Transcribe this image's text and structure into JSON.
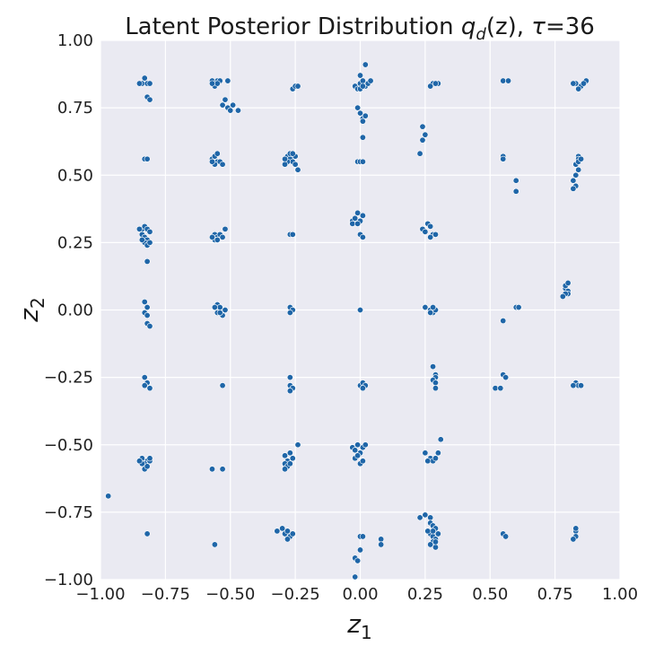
{
  "chart_data": {
    "type": "scatter",
    "title": "Latent Posterior Distribution q_d(z), τ=36",
    "title_parts": {
      "prefix": "Latent Posterior Distribution ",
      "q": "q",
      "q_sub": "d",
      "arg": "(z), ",
      "tau": "τ",
      "tau_value": "=36"
    },
    "xlabel": {
      "main": "z",
      "sub": "1"
    },
    "ylabel": {
      "main": "z",
      "sub": "2"
    },
    "xlim": [
      -1.0,
      1.0
    ],
    "ylim": [
      -1.0,
      1.0
    ],
    "x_ticks": [
      -1.0,
      -0.75,
      -0.5,
      -0.25,
      0.0,
      0.25,
      0.5,
      0.75,
      1.0
    ],
    "y_ticks": [
      -1.0,
      -0.75,
      -0.5,
      -0.25,
      0.0,
      0.25,
      0.5,
      0.75,
      1.0
    ],
    "x_tick_labels": [
      "−1.00",
      "−0.75",
      "−0.50",
      "−0.25",
      "0.00",
      "0.25",
      "0.50",
      "0.75",
      "1.00"
    ],
    "y_tick_labels": [
      "−1.00",
      "−0.75",
      "−0.50",
      "−0.25",
      "0.00",
      "0.25",
      "0.50",
      "0.75",
      "1.00"
    ],
    "grid": true,
    "colors": {
      "background": "#eaeaf2",
      "grid": "#ffffff",
      "point": "#1f66a8",
      "point_edge": "#ffffff"
    },
    "series": [
      {
        "points": [
          [
            -0.84,
            0.84
          ],
          [
            -0.83,
            0.86
          ],
          [
            -0.82,
            0.84
          ],
          [
            -0.85,
            0.84
          ],
          [
            -0.81,
            0.84
          ],
          [
            -0.82,
            0.79
          ],
          [
            -0.81,
            0.78
          ],
          [
            -0.57,
            0.85
          ],
          [
            -0.55,
            0.85
          ],
          [
            -0.56,
            0.84
          ],
          [
            -0.54,
            0.85
          ],
          [
            -0.56,
            0.83
          ],
          [
            -0.55,
            0.84
          ],
          [
            -0.57,
            0.84
          ],
          [
            -0.51,
            0.85
          ],
          [
            -0.53,
            0.76
          ],
          [
            -0.51,
            0.75
          ],
          [
            -0.49,
            0.76
          ],
          [
            -0.47,
            0.74
          ],
          [
            -0.5,
            0.74
          ],
          [
            -0.52,
            0.78
          ],
          [
            -0.26,
            0.82
          ],
          [
            -0.25,
            0.83
          ],
          [
            -0.24,
            0.83
          ],
          [
            -0.02,
            0.83
          ],
          [
            0.0,
            0.84
          ],
          [
            0.01,
            0.85
          ],
          [
            0.02,
            0.83
          ],
          [
            0.03,
            0.84
          ],
          [
            -0.01,
            0.82
          ],
          [
            0.0,
            0.82
          ],
          [
            0.02,
            0.91
          ],
          [
            0.0,
            0.87
          ],
          [
            0.04,
            0.85
          ],
          [
            0.01,
            0.83
          ],
          [
            -0.01,
            0.75
          ],
          [
            0.0,
            0.73
          ],
          [
            0.01,
            0.71
          ],
          [
            0.02,
            0.72
          ],
          [
            0.01,
            0.7
          ],
          [
            0.01,
            0.64
          ],
          [
            0.28,
            0.84
          ],
          [
            0.27,
            0.83
          ],
          [
            0.3,
            0.84
          ],
          [
            0.29,
            0.84
          ],
          [
            0.55,
            0.85
          ],
          [
            0.57,
            0.85
          ],
          [
            0.83,
            0.84
          ],
          [
            0.85,
            0.83
          ],
          [
            0.87,
            0.85
          ],
          [
            0.86,
            0.84
          ],
          [
            0.84,
            0.82
          ],
          [
            0.82,
            0.84
          ],
          [
            0.24,
            0.68
          ],
          [
            0.25,
            0.65
          ],
          [
            0.24,
            0.63
          ],
          [
            0.23,
            0.58
          ],
          [
            -0.83,
            0.56
          ],
          [
            -0.82,
            0.56
          ],
          [
            -0.57,
            0.56
          ],
          [
            -0.55,
            0.55
          ],
          [
            -0.56,
            0.57
          ],
          [
            -0.54,
            0.55
          ],
          [
            -0.56,
            0.54
          ],
          [
            -0.53,
            0.54
          ],
          [
            -0.55,
            0.58
          ],
          [
            -0.57,
            0.55
          ],
          [
            -0.28,
            0.57
          ],
          [
            -0.27,
            0.56
          ],
          [
            -0.26,
            0.55
          ],
          [
            -0.25,
            0.57
          ],
          [
            -0.28,
            0.55
          ],
          [
            -0.27,
            0.58
          ],
          [
            -0.25,
            0.54
          ],
          [
            -0.29,
            0.56
          ],
          [
            -0.26,
            0.58
          ],
          [
            -0.24,
            0.52
          ],
          [
            -0.29,
            0.54
          ],
          [
            -0.01,
            0.55
          ],
          [
            0.0,
            0.55
          ],
          [
            0.01,
            0.55
          ],
          [
            0.55,
            0.57
          ],
          [
            0.55,
            0.56
          ],
          [
            0.6,
            0.48
          ],
          [
            0.6,
            0.44
          ],
          [
            0.84,
            0.57
          ],
          [
            0.83,
            0.54
          ],
          [
            0.84,
            0.56
          ],
          [
            0.84,
            0.52
          ],
          [
            0.83,
            0.5
          ],
          [
            0.82,
            0.48
          ],
          [
            0.83,
            0.46
          ],
          [
            0.82,
            0.45
          ],
          [
            0.84,
            0.55
          ],
          [
            0.85,
            0.56
          ],
          [
            -0.84,
            0.3
          ],
          [
            -0.83,
            0.31
          ],
          [
            -0.82,
            0.3
          ],
          [
            -0.84,
            0.28
          ],
          [
            -0.83,
            0.27
          ],
          [
            -0.81,
            0.29
          ],
          [
            -0.82,
            0.26
          ],
          [
            -0.85,
            0.3
          ],
          [
            -0.83,
            0.25
          ],
          [
            -0.82,
            0.24
          ],
          [
            -0.81,
            0.25
          ],
          [
            -0.84,
            0.26
          ],
          [
            -0.82,
            0.18
          ],
          [
            -0.56,
            0.28
          ],
          [
            -0.55,
            0.27
          ],
          [
            -0.54,
            0.28
          ],
          [
            -0.56,
            0.26
          ],
          [
            -0.55,
            0.26
          ],
          [
            -0.53,
            0.27
          ],
          [
            -0.57,
            0.27
          ],
          [
            -0.52,
            0.3
          ],
          [
            -0.27,
            0.28
          ],
          [
            -0.26,
            0.28
          ],
          [
            -0.03,
            0.33
          ],
          [
            -0.02,
            0.34
          ],
          [
            -0.01,
            0.36
          ],
          [
            0.0,
            0.33
          ],
          [
            -0.03,
            0.32
          ],
          [
            -0.01,
            0.32
          ],
          [
            0.01,
            0.35
          ],
          [
            0.0,
            0.28
          ],
          [
            0.01,
            0.27
          ],
          [
            0.24,
            0.3
          ],
          [
            0.26,
            0.32
          ],
          [
            0.27,
            0.31
          ],
          [
            0.25,
            0.29
          ],
          [
            0.28,
            0.28
          ],
          [
            0.29,
            0.28
          ],
          [
            0.27,
            0.27
          ],
          [
            -0.83,
            0.03
          ],
          [
            -0.82,
            0.01
          ],
          [
            -0.83,
            -0.01
          ],
          [
            -0.82,
            -0.02
          ],
          [
            -0.82,
            -0.05
          ],
          [
            -0.81,
            -0.06
          ],
          [
            -0.55,
            0.02
          ],
          [
            -0.54,
            0.01
          ],
          [
            -0.56,
            0.01
          ],
          [
            -0.55,
            -0.01
          ],
          [
            -0.53,
            -0.02
          ],
          [
            -0.54,
            -0.01
          ],
          [
            -0.52,
            0.0
          ],
          [
            -0.27,
            0.01
          ],
          [
            -0.26,
            0.0
          ],
          [
            -0.27,
            -0.01
          ],
          [
            0.0,
            0.0
          ],
          [
            0.25,
            0.01
          ],
          [
            0.27,
            0.0
          ],
          [
            0.28,
            -0.01
          ],
          [
            0.29,
            0.0
          ],
          [
            0.27,
            -0.01
          ],
          [
            0.28,
            0.01
          ],
          [
            0.55,
            -0.04
          ],
          [
            0.6,
            0.01
          ],
          [
            0.61,
            0.01
          ],
          [
            0.79,
            0.08
          ],
          [
            0.8,
            0.07
          ],
          [
            0.79,
            0.09
          ],
          [
            0.8,
            0.06
          ],
          [
            0.79,
            0.06
          ],
          [
            0.78,
            0.05
          ],
          [
            0.8,
            0.1
          ],
          [
            -0.83,
            -0.25
          ],
          [
            -0.82,
            -0.27
          ],
          [
            -0.83,
            -0.28
          ],
          [
            -0.81,
            -0.29
          ],
          [
            -0.53,
            -0.28
          ],
          [
            -0.27,
            -0.25
          ],
          [
            -0.27,
            -0.28
          ],
          [
            -0.26,
            -0.29
          ],
          [
            -0.27,
            -0.3
          ],
          [
            0.0,
            -0.28
          ],
          [
            0.01,
            -0.27
          ],
          [
            0.02,
            -0.28
          ],
          [
            0.01,
            -0.29
          ],
          [
            0.28,
            -0.21
          ],
          [
            0.29,
            -0.24
          ],
          [
            0.29,
            -0.25
          ],
          [
            0.28,
            -0.26
          ],
          [
            0.29,
            -0.27
          ],
          [
            0.29,
            -0.29
          ],
          [
            0.52,
            -0.29
          ],
          [
            0.54,
            -0.29
          ],
          [
            0.55,
            -0.24
          ],
          [
            0.56,
            -0.25
          ],
          [
            0.83,
            -0.27
          ],
          [
            0.84,
            -0.28
          ],
          [
            0.85,
            -0.28
          ],
          [
            0.82,
            -0.28
          ],
          [
            -0.84,
            -0.55
          ],
          [
            -0.82,
            -0.56
          ],
          [
            -0.83,
            -0.57
          ],
          [
            -0.81,
            -0.56
          ],
          [
            -0.84,
            -0.57
          ],
          [
            -0.83,
            -0.59
          ],
          [
            -0.82,
            -0.58
          ],
          [
            -0.81,
            -0.55
          ],
          [
            -0.85,
            -0.56
          ],
          [
            -0.57,
            -0.59
          ],
          [
            -0.53,
            -0.59
          ],
          [
            -0.29,
            -0.54
          ],
          [
            -0.28,
            -0.56
          ],
          [
            -0.29,
            -0.57
          ],
          [
            -0.28,
            -0.58
          ],
          [
            -0.29,
            -0.59
          ],
          [
            -0.27,
            -0.57
          ],
          [
            -0.26,
            -0.55
          ],
          [
            -0.24,
            -0.5
          ],
          [
            -0.27,
            -0.53
          ],
          [
            -0.03,
            -0.51
          ],
          [
            -0.02,
            -0.52
          ],
          [
            -0.01,
            -0.5
          ],
          [
            0.0,
            -0.53
          ],
          [
            0.01,
            -0.51
          ],
          [
            0.02,
            -0.5
          ],
          [
            -0.02,
            -0.55
          ],
          [
            0.0,
            -0.57
          ],
          [
            0.01,
            -0.56
          ],
          [
            -0.01,
            -0.54
          ],
          [
            0.25,
            -0.53
          ],
          [
            0.27,
            -0.55
          ],
          [
            0.28,
            -0.56
          ],
          [
            0.29,
            -0.55
          ],
          [
            0.3,
            -0.53
          ],
          [
            0.31,
            -0.48
          ],
          [
            0.26,
            -0.56
          ],
          [
            -0.97,
            -0.69
          ],
          [
            -0.82,
            -0.83
          ],
          [
            -0.56,
            -0.87
          ],
          [
            -0.32,
            -0.82
          ],
          [
            -0.3,
            -0.81
          ],
          [
            -0.29,
            -0.83
          ],
          [
            -0.28,
            -0.82
          ],
          [
            -0.27,
            -0.84
          ],
          [
            -0.26,
            -0.83
          ],
          [
            -0.28,
            -0.85
          ],
          [
            0.0,
            -0.84
          ],
          [
            0.01,
            -0.84
          ],
          [
            -0.02,
            -0.92
          ],
          [
            -0.01,
            -0.93
          ],
          [
            0.0,
            -0.89
          ],
          [
            -0.02,
            -0.99
          ],
          [
            0.08,
            -0.85
          ],
          [
            0.08,
            -0.87
          ],
          [
            0.23,
            -0.77
          ],
          [
            0.25,
            -0.76
          ],
          [
            0.27,
            -0.77
          ],
          [
            0.27,
            -0.79
          ],
          [
            0.28,
            -0.8
          ],
          [
            0.29,
            -0.81
          ],
          [
            0.27,
            -0.83
          ],
          [
            0.28,
            -0.84
          ],
          [
            0.29,
            -0.85
          ],
          [
            0.28,
            -0.86
          ],
          [
            0.27,
            -0.87
          ],
          [
            0.29,
            -0.88
          ],
          [
            0.28,
            -0.82
          ],
          [
            0.3,
            -0.83
          ],
          [
            0.26,
            -0.82
          ],
          [
            0.29,
            -0.86
          ],
          [
            0.55,
            -0.83
          ],
          [
            0.56,
            -0.84
          ],
          [
            0.83,
            -0.82
          ],
          [
            0.83,
            -0.84
          ],
          [
            0.82,
            -0.85
          ],
          [
            0.83,
            -0.81
          ]
        ]
      }
    ]
  }
}
